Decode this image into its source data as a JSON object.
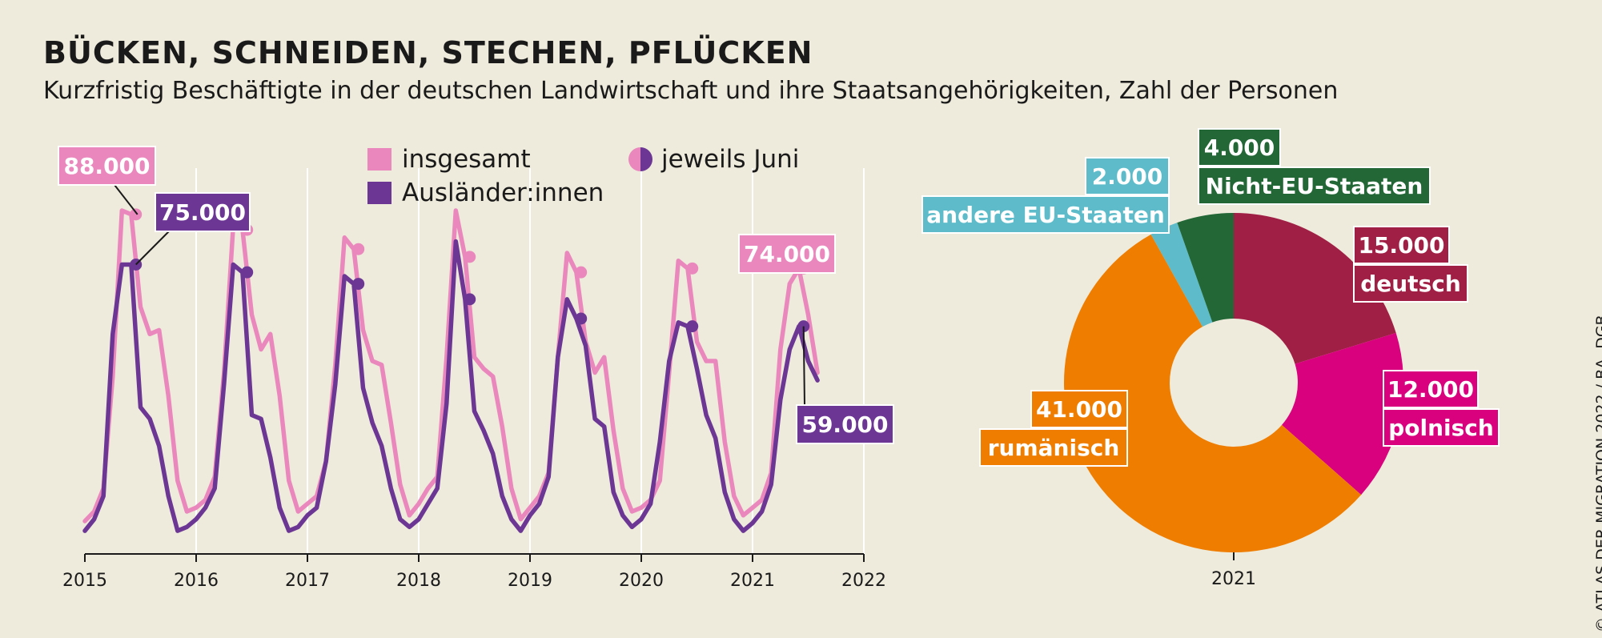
{
  "title": "BÜCKEN, SCHNEIDEN, STECHEN, PFLÜCKEN",
  "subtitle": "Kurzfristig Beschäftigte in der deutschen Landwirtschaft und ihre Staatsangehörigkeiten, Zahl der Personen",
  "credit": "© ATLAS DER MIGRATION 2022 / BA, DGB",
  "colors": {
    "background": "#eeebdc",
    "insgesamt": "#ea88bd",
    "auslaender": "#6c3794",
    "deutsch": "#a01f45",
    "polnisch": "#d9017e",
    "rumaenisch": "#ef7d00",
    "andere_eu": "#5ebcca",
    "nicht_eu": "#236737"
  },
  "chart_data": [
    {
      "type": "line",
      "xlim": [
        2015,
        2022
      ],
      "ylim": [
        0,
        100000
      ],
      "x_ticks": [
        "2015",
        "2016",
        "2017",
        "2018",
        "2019",
        "2020",
        "2021",
        "2022"
      ],
      "grid": "vertical",
      "legend_position": "top",
      "legend": {
        "insgesamt": "insgesamt",
        "auslaender": "Ausländer:innen",
        "juni": "jeweils Juni"
      },
      "start": {
        "year": 2015,
        "month": 1
      },
      "series": [
        {
          "key": "insgesamt",
          "name": "insgesamt",
          "values": [
            8500,
            11000,
            17000,
            46000,
            89000,
            88000,
            64000,
            57000,
            58000,
            41000,
            19000,
            11000,
            12000,
            14000,
            20000,
            47000,
            85000,
            84000,
            62000,
            53000,
            57000,
            41000,
            19000,
            11000,
            13000,
            15000,
            24000,
            49000,
            82000,
            79000,
            58000,
            50000,
            49000,
            34000,
            18000,
            10000,
            13000,
            17000,
            20000,
            51000,
            89000,
            77000,
            51000,
            48000,
            46000,
            33000,
            17000,
            9000,
            12000,
            15000,
            21000,
            51000,
            78000,
            73000,
            55000,
            47000,
            51000,
            32000,
            17000,
            11000,
            12000,
            14000,
            19000,
            47000,
            76000,
            74000,
            55000,
            50000,
            50000,
            29000,
            15000,
            10000,
            12000,
            14000,
            21000,
            53000,
            70000,
            74000,
            62000,
            47000
          ]
        },
        {
          "key": "auslaender",
          "name": "Ausländer:innen",
          "values": [
            6000,
            9000,
            15000,
            57000,
            75000,
            75000,
            38000,
            35000,
            28000,
            15000,
            6000,
            7000,
            9000,
            12000,
            17000,
            44000,
            75000,
            73000,
            36000,
            35000,
            25000,
            12000,
            6000,
            7000,
            10000,
            12000,
            24000,
            44000,
            72000,
            70000,
            43000,
            34000,
            28000,
            17000,
            9000,
            7000,
            9000,
            13000,
            17000,
            39000,
            81000,
            66000,
            37000,
            32000,
            26000,
            15000,
            9000,
            6000,
            10000,
            13000,
            20000,
            51000,
            66000,
            61000,
            54000,
            35000,
            33000,
            16000,
            10000,
            7000,
            9000,
            13000,
            29000,
            50000,
            60000,
            59000,
            48000,
            36000,
            30000,
            16000,
            9000,
            6000,
            8000,
            11000,
            18000,
            40000,
            53000,
            59000,
            50000,
            45000
          ]
        }
      ],
      "june_markers": [
        {
          "year": 2015,
          "insgesamt": 88000,
          "auslaender": 75000
        },
        {
          "year": 2016,
          "insgesamt": 84000,
          "auslaender": 73000
        },
        {
          "year": 2017,
          "insgesamt": 79000,
          "auslaender": 70000
        },
        {
          "year": 2018,
          "insgesamt": 77000,
          "auslaender": 66000
        },
        {
          "year": 2019,
          "insgesamt": 73000,
          "auslaender": 61000
        },
        {
          "year": 2020,
          "insgesamt": 74000,
          "auslaender": 59000
        },
        {
          "year": 2021,
          "insgesamt": 74000,
          "auslaender": 59000
        }
      ],
      "annotations": [
        {
          "text": "88.000",
          "series": "insgesamt"
        },
        {
          "text": "75.000",
          "series": "auslaender"
        },
        {
          "text": "74.000",
          "series": "insgesamt"
        },
        {
          "text": "59.000",
          "series": "auslaender"
        }
      ]
    },
    {
      "type": "pie",
      "donut": true,
      "year_label": "2021",
      "slices": [
        {
          "key": "deutsch",
          "name": "deutsch",
          "value": 15000,
          "label": "15.000"
        },
        {
          "key": "polnisch",
          "name": "polnisch",
          "value": 12000,
          "label": "12.000"
        },
        {
          "key": "rumaenisch",
          "name": "rumänisch",
          "value": 41000,
          "label": "41.000"
        },
        {
          "key": "andere_eu",
          "name": "andere EU-Staaten",
          "value": 2000,
          "label": "2.000"
        },
        {
          "key": "nicht_eu",
          "name": "Nicht-EU-Staaten",
          "value": 4000,
          "label": "4.000"
        }
      ]
    }
  ]
}
